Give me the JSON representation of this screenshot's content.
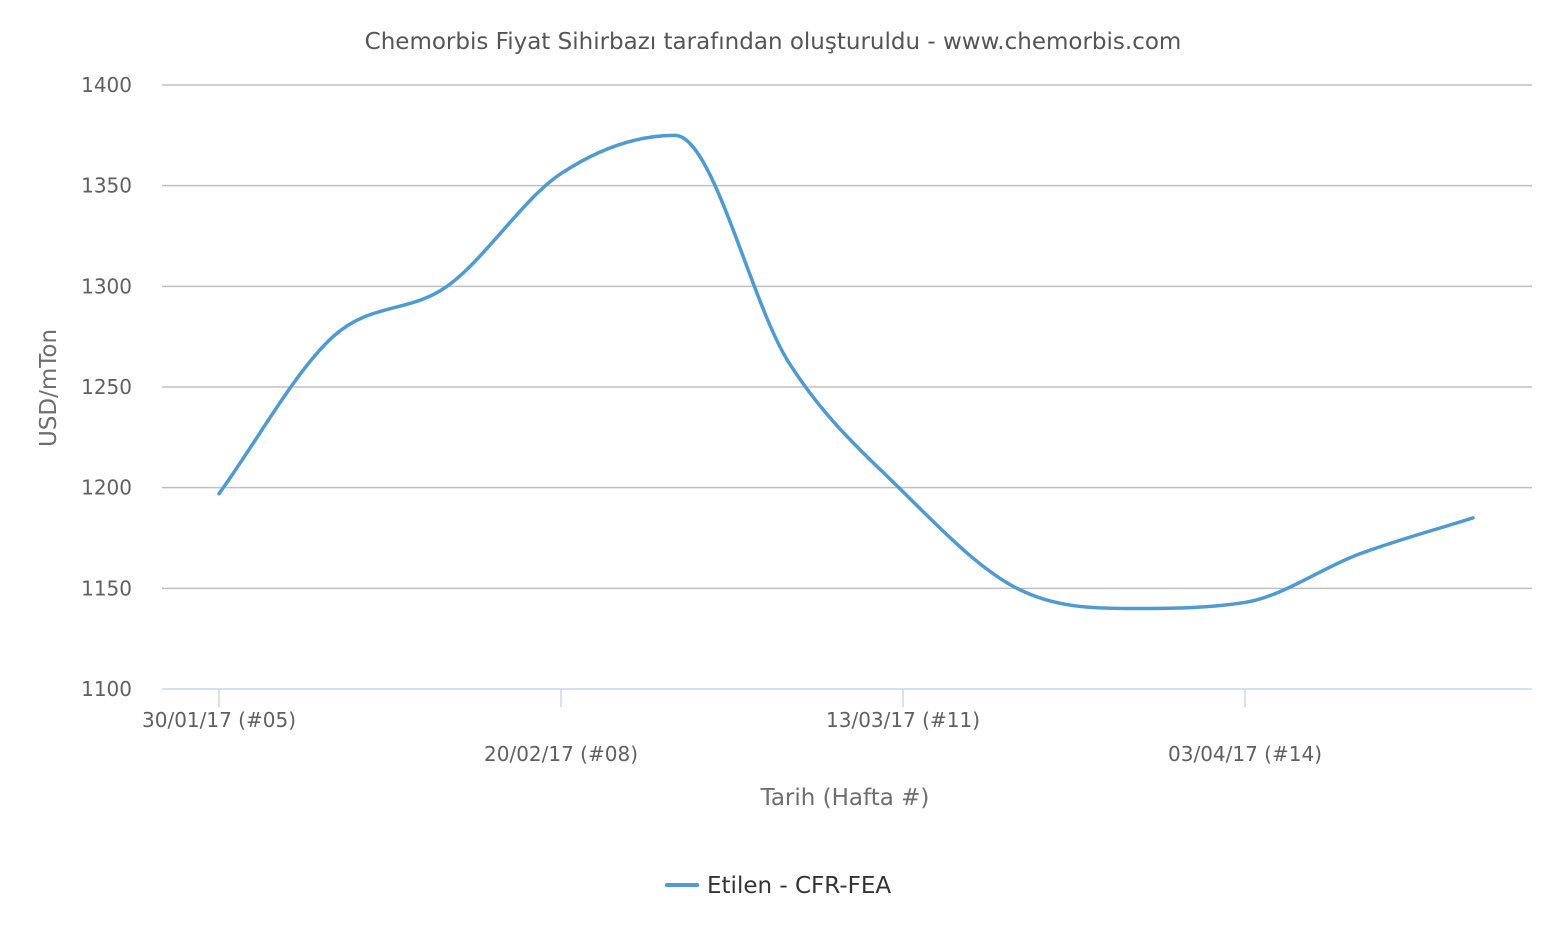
{
  "chart_data": {
    "type": "line",
    "title": "Chemorbis Fiyat Sihirbazı tarafından oluşturuldu - www.chemorbis.com",
    "xlabel": "Tarih (Hafta #)",
    "ylabel": "USD/mTon",
    "ylim": [
      1100,
      1400
    ],
    "yticks": [
      "1400",
      "1350",
      "1300",
      "1250",
      "1200",
      "1150",
      "1100"
    ],
    "grid": true,
    "legend_position": "bottom-center",
    "x_tick_labels": [
      "30/01/17 (#05)",
      "20/02/17 (#08)",
      "13/03/17 (#11)",
      "03/04/17 (#14)"
    ],
    "x": [
      "30/01/17",
      "06/02/17",
      "13/02/17",
      "20/02/17",
      "27/02/17",
      "06/03/17",
      "13/03/17",
      "20/03/17",
      "27/03/17",
      "03/04/17",
      "10/04/17",
      "17/04/17"
    ],
    "series": [
      {
        "name": "Etilen - CFR-FEA",
        "color": "#4f9ad1",
        "values": [
          1197,
          1275,
          1300,
          1356,
          1375,
          1262,
          1198,
          1150,
          1140,
          1143,
          1167,
          1185
        ]
      }
    ]
  }
}
